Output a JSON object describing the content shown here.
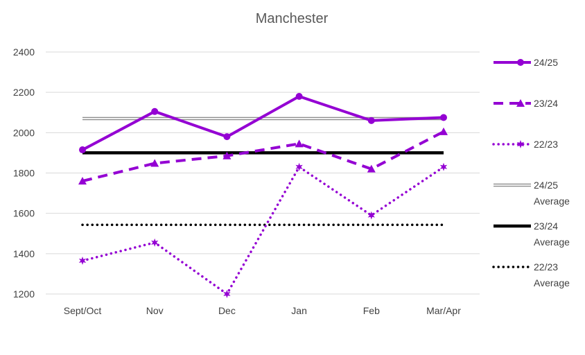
{
  "chart_data": {
    "type": "line",
    "title": "Manchester",
    "xlabel": "",
    "ylabel": "",
    "categories": [
      "Sept/Oct",
      "Nov",
      "Dec",
      "Jan",
      "Feb",
      "Mar/Apr"
    ],
    "ylim": [
      1200,
      2400
    ],
    "yticks": [
      1200,
      1400,
      1600,
      1800,
      2000,
      2200,
      2400
    ],
    "grid": true,
    "legend_position": "right",
    "series": [
      {
        "name": "24/25",
        "values": [
          1915,
          2105,
          1980,
          2180,
          2060,
          2075
        ],
        "color": "#9400D3",
        "style": "solid-circle"
      },
      {
        "name": "23/24",
        "values": [
          1760,
          1848,
          1885,
          1945,
          1820,
          2005
        ],
        "color": "#9400D3",
        "style": "dashed-triangle"
      },
      {
        "name": "22/23",
        "values": [
          1365,
          1455,
          1200,
          1830,
          1590,
          1830
        ],
        "color": "#9400D3",
        "style": "dotted-star"
      },
      {
        "name": "24/25 Average",
        "values": [
          2070,
          2070,
          2070,
          2070,
          2070,
          2070
        ],
        "color": "#8c8c8c",
        "style": "double-line"
      },
      {
        "name": "23/24 Average",
        "values": [
          1900,
          1900,
          1900,
          1900,
          1900,
          1900
        ],
        "color": "#000000",
        "style": "thick-solid"
      },
      {
        "name": "22/23 Average",
        "values": [
          1543,
          1543,
          1543,
          1543,
          1543,
          1543
        ],
        "color": "#000000",
        "style": "dotted"
      }
    ],
    "legend": [
      {
        "label_line1": "24/25",
        "label_line2": ""
      },
      {
        "label_line1": "23/24",
        "label_line2": ""
      },
      {
        "label_line1": "22/23",
        "label_line2": ""
      },
      {
        "label_line1": "24/25",
        "label_line2": "Average"
      },
      {
        "label_line1": "23/24",
        "label_line2": "Average"
      },
      {
        "label_line1": "22/23",
        "label_line2": "Average"
      }
    ]
  }
}
